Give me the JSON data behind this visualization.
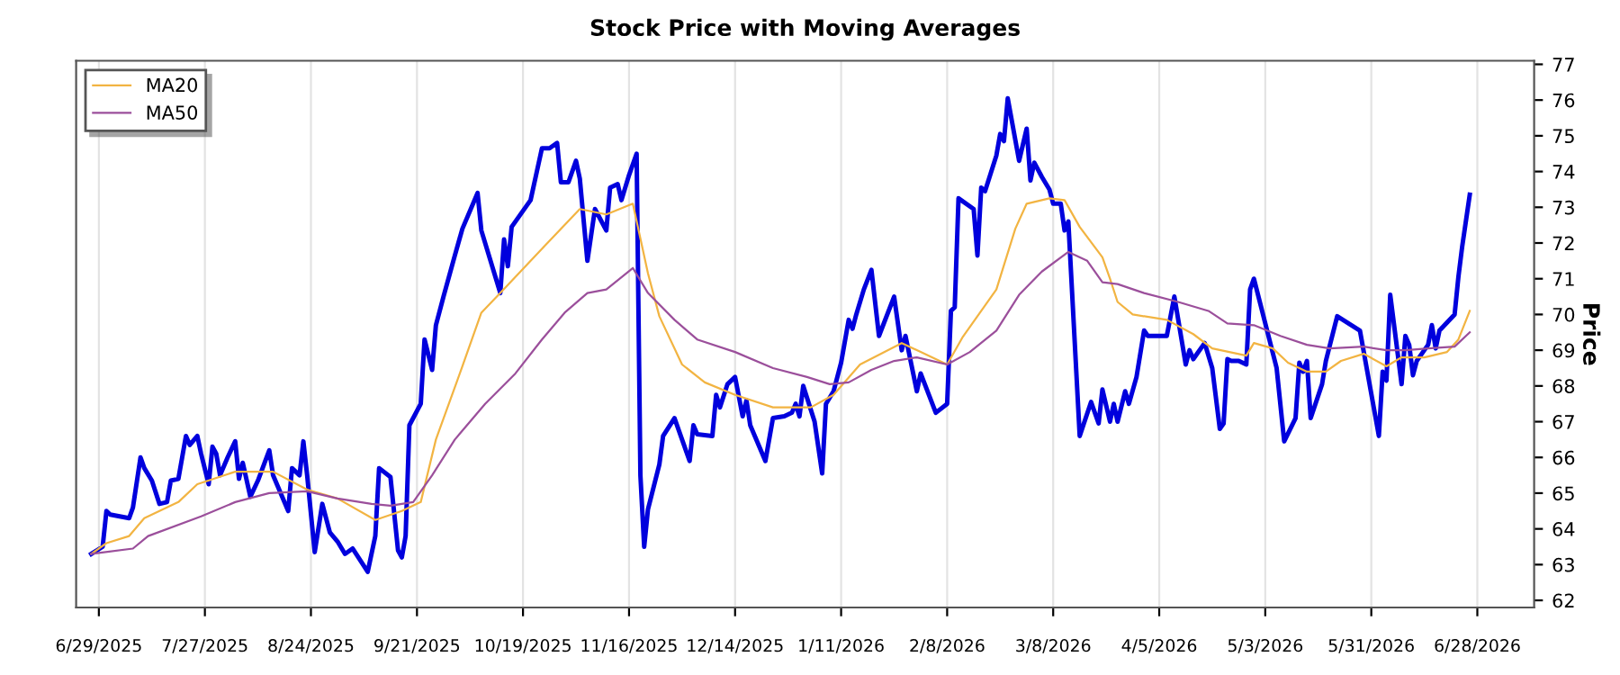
{
  "chart_data": {
    "type": "line",
    "title": "Stock Price with Moving Averages",
    "ylabel": "Price",
    "xlim": [
      "2025-06-23",
      "2026-07-13"
    ],
    "ylim": [
      61.8,
      77.1
    ],
    "xticks": [
      {
        "value": "2025-06-29",
        "label": "6/29/2025"
      },
      {
        "value": "2025-07-27",
        "label": "7/27/2025"
      },
      {
        "value": "2025-08-24",
        "label": "8/24/2025"
      },
      {
        "value": "2025-09-21",
        "label": "9/21/2025"
      },
      {
        "value": "2025-10-19",
        "label": "10/19/2025"
      },
      {
        "value": "2025-11-16",
        "label": "11/16/2025"
      },
      {
        "value": "2025-12-14",
        "label": "12/14/2025"
      },
      {
        "value": "2026-01-11",
        "label": "1/11/2026"
      },
      {
        "value": "2026-02-08",
        "label": "2/8/2026"
      },
      {
        "value": "2026-03-08",
        "label": "3/8/2026"
      },
      {
        "value": "2026-04-05",
        "label": "4/5/2026"
      },
      {
        "value": "2026-05-03",
        "label": "5/3/2026"
      },
      {
        "value": "2026-05-31",
        "label": "5/31/2026"
      },
      {
        "value": "2026-06-28",
        "label": "6/28/2026"
      }
    ],
    "yticks": [
      62,
      63,
      64,
      65,
      66,
      67,
      68,
      69,
      70,
      71,
      72,
      73,
      74,
      75,
      76,
      77
    ],
    "grid": "x",
    "legend": "top left",
    "marker": "none",
    "line_style": "solid",
    "series": [
      {
        "color": "#0000dd",
        "x": [
          "2025-06-27",
          "2025-06-30",
          "2025-07-01",
          "2025-07-02",
          "2025-07-07",
          "2025-07-08",
          "2025-07-10",
          "2025-07-11",
          "2025-07-13",
          "2025-07-15",
          "2025-07-17",
          "2025-07-18",
          "2025-07-20",
          "2025-07-22",
          "2025-07-23",
          "2025-07-25",
          "2025-07-26",
          "2025-07-28",
          "2025-07-29",
          "2025-07-30",
          "2025-07-31",
          "2025-08-02",
          "2025-08-04",
          "2025-08-05",
          "2025-08-06",
          "2025-08-08",
          "2025-08-10",
          "2025-08-13",
          "2025-08-14",
          "2025-08-18",
          "2025-08-19",
          "2025-08-21",
          "2025-08-22",
          "2025-08-23",
          "2025-08-25",
          "2025-08-27",
          "2025-08-29",
          "2025-08-31",
          "2025-09-02",
          "2025-09-04",
          "2025-09-08",
          "2025-09-10",
          "2025-09-11",
          "2025-09-14",
          "2025-09-16",
          "2025-09-17",
          "2025-09-18",
          "2025-09-19",
          "2025-09-22",
          "2025-09-23",
          "2025-09-25",
          "2025-09-26",
          "2025-09-28",
          "2025-10-01",
          "2025-10-03",
          "2025-10-07",
          "2025-10-08",
          "2025-10-13",
          "2025-10-14",
          "2025-10-15",
          "2025-10-16",
          "2025-10-21",
          "2025-10-24",
          "2025-10-26",
          "2025-10-28",
          "2025-10-29",
          "2025-10-31",
          "2025-11-02",
          "2025-11-03",
          "2025-11-05",
          "2025-11-07",
          "2025-11-10",
          "2025-11-11",
          "2025-11-13",
          "2025-11-14",
          "2025-11-16",
          "2025-11-18",
          "2025-11-19",
          "2025-11-20",
          "2025-11-21",
          "2025-11-24",
          "2025-11-25",
          "2025-11-28",
          "2025-12-02",
          "2025-12-03",
          "2025-12-04",
          "2025-12-08",
          "2025-12-09",
          "2025-12-10",
          "2025-12-12",
          "2025-12-14",
          "2025-12-16",
          "2025-12-17",
          "2025-12-18",
          "2025-12-22",
          "2025-12-24",
          "2025-12-27",
          "2025-12-29",
          "2025-12-30",
          "2025-12-31",
          "2026-01-01",
          "2026-01-04",
          "2026-01-06",
          "2026-01-07",
          "2026-01-09",
          "2026-01-11",
          "2026-01-13",
          "2026-01-14",
          "2026-01-15",
          "2026-01-17",
          "2026-01-19",
          "2026-01-21",
          "2026-01-25",
          "2026-01-27",
          "2026-01-28",
          "2026-01-31",
          "2026-02-01",
          "2026-02-05",
          "2026-02-08",
          "2026-02-09",
          "2026-02-10",
          "2026-02-11",
          "2026-02-15",
          "2026-02-16",
          "2026-02-17",
          "2026-02-18",
          "2026-02-21",
          "2026-02-22",
          "2026-02-23",
          "2026-02-24",
          "2026-02-27",
          "2026-03-01",
          "2026-03-02",
          "2026-03-03",
          "2026-03-05",
          "2026-03-07",
          "2026-03-08",
          "2026-03-10",
          "2026-03-11",
          "2026-03-12",
          "2026-03-15",
          "2026-03-18",
          "2026-03-20",
          "2026-03-21",
          "2026-03-23",
          "2026-03-24",
          "2026-03-25",
          "2026-03-27",
          "2026-03-28",
          "2026-03-30",
          "2026-04-01",
          "2026-04-02",
          "2026-04-07",
          "2026-04-09",
          "2026-04-12",
          "2026-04-13",
          "2026-04-14",
          "2026-04-17",
          "2026-04-19",
          "2026-04-21",
          "2026-04-22",
          "2026-04-23",
          "2026-04-24",
          "2026-04-26",
          "2026-04-28",
          "2026-04-29",
          "2026-04-30",
          "2026-05-06",
          "2026-05-08",
          "2026-05-11",
          "2026-05-12",
          "2026-05-13",
          "2026-05-14",
          "2026-05-15",
          "2026-05-18",
          "2026-05-19",
          "2026-05-22",
          "2026-05-28",
          "2026-06-02",
          "2026-06-03",
          "2026-06-04",
          "2026-06-05",
          "2026-06-08",
          "2026-06-09",
          "2026-06-10",
          "2026-06-11",
          "2026-06-12",
          "2026-06-15",
          "2026-06-16",
          "2026-06-17",
          "2026-06-18",
          "2026-06-22",
          "2026-06-23",
          "2026-06-24",
          "2026-06-26"
        ],
        "values": [
          63.3,
          63.5,
          64.5,
          64.4,
          64.3,
          64.6,
          66.0,
          65.7,
          65.35,
          64.7,
          64.75,
          65.35,
          65.4,
          66.6,
          66.35,
          66.6,
          66.1,
          65.25,
          66.3,
          66.1,
          65.5,
          66.0,
          66.45,
          65.4,
          65.85,
          64.9,
          65.35,
          66.2,
          65.5,
          64.5,
          65.7,
          65.5,
          66.45,
          65.5,
          63.35,
          64.7,
          63.9,
          63.65,
          63.3,
          63.45,
          62.8,
          63.8,
          65.7,
          65.45,
          63.4,
          63.2,
          63.8,
          66.9,
          67.5,
          69.3,
          68.45,
          69.7,
          70.5,
          71.65,
          72.4,
          73.4,
          72.35,
          70.6,
          72.1,
          71.35,
          72.45,
          73.2,
          74.65,
          74.65,
          74.8,
          73.7,
          73.7,
          74.3,
          73.8,
          71.5,
          72.95,
          72.35,
          73.55,
          73.65,
          73.2,
          73.9,
          74.5,
          65.5,
          63.5,
          64.55,
          65.8,
          66.6,
          67.1,
          65.9,
          66.9,
          66.65,
          66.6,
          67.75,
          67.4,
          68.05,
          68.25,
          67.15,
          67.6,
          66.9,
          65.9,
          67.1,
          67.15,
          67.25,
          67.5,
          67.15,
          68.0,
          67.0,
          65.55,
          67.5,
          67.85,
          68.65,
          69.85,
          69.6,
          70.0,
          70.7,
          71.25,
          69.4,
          70.5,
          69.0,
          69.4,
          67.85,
          68.35,
          67.25,
          67.5,
          70.1,
          70.2,
          73.25,
          72.95,
          71.65,
          73.55,
          73.45,
          74.45,
          75.05,
          74.85,
          76.05,
          74.3,
          75.2,
          73.75,
          74.25,
          73.85,
          73.5,
          73.1,
          73.1,
          72.35,
          72.6,
          66.6,
          67.55,
          66.95,
          67.9,
          67.0,
          67.5,
          67.0,
          67.85,
          67.5,
          68.25,
          69.55,
          69.4,
          69.4,
          70.5,
          68.6,
          69.0,
          68.75,
          69.2,
          68.5,
          66.8,
          66.95,
          68.75,
          68.7,
          68.7,
          68.6,
          70.7,
          71.0,
          68.5,
          66.45,
          67.1,
          68.65,
          68.4,
          68.7,
          67.1,
          68.05,
          68.7,
          69.95,
          69.55,
          66.6,
          68.4,
          68.15,
          70.55,
          68.05,
          69.4,
          69.15,
          68.3,
          68.7,
          69.15,
          69.7,
          69.05,
          69.55,
          70.0,
          71.05,
          71.9,
          73.35
        ]
      },
      {
        "name": "MA20",
        "color": "#f2b442",
        "x": [
          "2025-06-27",
          "2025-07-01",
          "2025-07-07",
          "2025-07-11",
          "2025-07-20",
          "2025-07-25",
          "2025-08-04",
          "2025-08-14",
          "2025-08-23",
          "2025-08-31",
          "2025-09-10",
          "2025-09-17",
          "2025-09-22",
          "2025-09-26",
          "2025-10-03",
          "2025-10-08",
          "2025-10-13",
          "2025-10-25",
          "2025-11-03",
          "2025-11-10",
          "2025-11-17",
          "2025-11-21",
          "2025-11-24",
          "2025-11-30",
          "2025-12-06",
          "2025-12-14",
          "2025-12-24",
          "2026-01-03",
          "2026-01-09",
          "2026-01-16",
          "2026-01-27",
          "2026-02-01",
          "2026-02-08",
          "2026-02-12",
          "2026-02-21",
          "2026-02-26",
          "2026-03-01",
          "2026-03-07",
          "2026-03-11",
          "2026-03-15",
          "2026-03-21",
          "2026-03-23",
          "2026-03-25",
          "2026-03-29",
          "2026-04-07",
          "2026-04-14",
          "2026-04-19",
          "2026-04-28",
          "2026-04-30",
          "2026-05-05",
          "2026-05-09",
          "2026-05-14",
          "2026-05-19",
          "2026-05-23",
          "2026-05-29",
          "2026-06-04",
          "2026-06-08",
          "2026-06-14",
          "2026-06-20",
          "2026-06-23",
          "2026-06-26"
        ],
        "values": [
          63.3,
          63.6,
          63.8,
          64.3,
          64.75,
          65.25,
          65.6,
          65.6,
          65.1,
          64.85,
          64.25,
          64.5,
          64.75,
          66.5,
          68.55,
          70.05,
          70.6,
          71.95,
          72.95,
          72.8,
          73.1,
          71.15,
          69.95,
          68.6,
          68.1,
          67.75,
          67.4,
          67.4,
          67.75,
          68.6,
          69.2,
          68.95,
          68.6,
          69.35,
          70.7,
          72.4,
          73.1,
          73.25,
          73.2,
          72.45,
          71.6,
          71.0,
          70.35,
          70.0,
          69.85,
          69.45,
          69.05,
          68.85,
          69.2,
          69.05,
          68.65,
          68.4,
          68.4,
          68.7,
          68.9,
          68.55,
          68.8,
          68.8,
          68.95,
          69.3,
          70.1
        ]
      },
      {
        "name": "MA50",
        "color": "#9b4f9b",
        "x": [
          "2025-06-27",
          "2025-07-08",
          "2025-07-12",
          "2025-07-26",
          "2025-08-04",
          "2025-08-13",
          "2025-08-23",
          "2025-08-31",
          "2025-09-09",
          "2025-09-14",
          "2025-09-20",
          "2025-09-25",
          "2025-10-01",
          "2025-10-09",
          "2025-10-17",
          "2025-10-24",
          "2025-10-30",
          "2025-11-05",
          "2025-11-10",
          "2025-11-17",
          "2025-11-21",
          "2025-11-28",
          "2025-12-04",
          "2025-12-14",
          "2025-12-24",
          "2026-01-02",
          "2026-01-08",
          "2026-01-13",
          "2026-01-19",
          "2026-01-25",
          "2026-01-31",
          "2026-02-08",
          "2026-02-14",
          "2026-02-21",
          "2026-02-27",
          "2026-03-05",
          "2026-03-12",
          "2026-03-17",
          "2026-03-21",
          "2026-03-25",
          "2026-04-01",
          "2026-04-10",
          "2026-04-18",
          "2026-04-23",
          "2026-04-30",
          "2026-05-07",
          "2026-05-14",
          "2026-05-20",
          "2026-05-29",
          "2026-06-04",
          "2026-06-09",
          "2026-06-15",
          "2026-06-22",
          "2026-06-26"
        ],
        "values": [
          63.3,
          63.45,
          63.8,
          64.35,
          64.75,
          65.0,
          65.05,
          64.85,
          64.7,
          64.65,
          64.75,
          65.5,
          66.5,
          67.5,
          68.35,
          69.3,
          70.05,
          70.6,
          70.7,
          71.3,
          70.6,
          69.85,
          69.3,
          68.95,
          68.5,
          68.25,
          68.05,
          68.1,
          68.45,
          68.7,
          68.8,
          68.6,
          68.95,
          69.55,
          70.55,
          71.2,
          71.75,
          71.5,
          70.9,
          70.85,
          70.6,
          70.35,
          70.1,
          69.75,
          69.7,
          69.4,
          69.15,
          69.05,
          69.1,
          69.0,
          69.0,
          69.05,
          69.1,
          69.5
        ]
      }
    ]
  }
}
